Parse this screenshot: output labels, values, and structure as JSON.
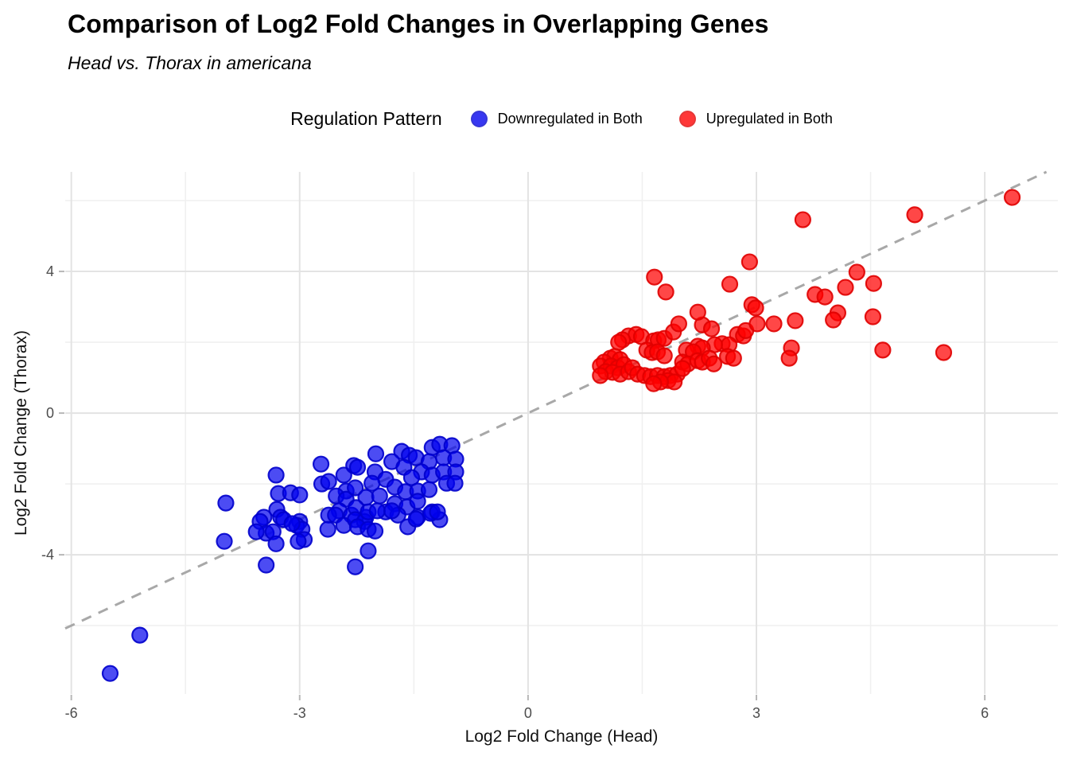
{
  "chart_data": {
    "type": "scatter",
    "title": "Comparison of Log2 Fold Changes in Overlapping Genes",
    "subtitle": "Head vs. Thorax in americana",
    "xlabel": "Log2 Fold Change (Head)",
    "ylabel": "Log2 Fold Change (Thorax)",
    "legend_title": "Regulation Pattern",
    "legend_position": "top-center",
    "grid": "on",
    "xlim": [
      -6.08,
      6.96
    ],
    "ylim": [
      -7.93,
      6.81
    ],
    "x_ticks": {
      "major": [
        {
          "value": -6,
          "label": "-6"
        },
        {
          "value": -3,
          "label": "-3"
        },
        {
          "value": 0,
          "label": "0"
        },
        {
          "value": 3,
          "label": "3"
        },
        {
          "value": 6,
          "label": "6"
        }
      ],
      "minor": [
        -4.5,
        -1.5,
        1.5,
        4.5
      ]
    },
    "y_ticks": {
      "major": [
        {
          "value": 4,
          "label": "4"
        },
        {
          "value": 0,
          "label": "0"
        },
        {
          "value": -4,
          "label": "-4"
        }
      ],
      "minor": [
        6,
        2,
        -2,
        -6
      ]
    },
    "reference_line": {
      "type": "identity",
      "slope": 1,
      "intercept": 0,
      "style": "dashed",
      "color": "#A8A8A8"
    },
    "colors": {
      "grid_major": "#e3e3e3",
      "grid_minor": "#f0f0f0",
      "tick_mark": "#b8b8b8",
      "tick_label": "#4d4d4d"
    },
    "series": [
      {
        "name": "Downregulated in Both",
        "fill": "#0000EE",
        "fill_opacity": 0.7,
        "stroke": "#0000CC",
        "stroke_opacity": 0.9,
        "points": [
          [
            -5.49,
            -7.35
          ],
          [
            -5.1,
            -6.27
          ],
          [
            -3.97,
            -2.54
          ],
          [
            -3.99,
            -3.62
          ],
          [
            -3.31,
            -1.75
          ],
          [
            -2.72,
            -1.44
          ],
          [
            -3.28,
            -2.27
          ],
          [
            -3.12,
            -2.25
          ],
          [
            -3.0,
            -2.31
          ],
          [
            -3.3,
            -2.72
          ],
          [
            -3.25,
            -2.94
          ],
          [
            -3.47,
            -2.94
          ],
          [
            -3.0,
            -3.06
          ],
          [
            -2.71,
            -2.0
          ],
          [
            -2.62,
            -1.93
          ],
          [
            -2.42,
            -1.75
          ],
          [
            -2.29,
            -1.48
          ],
          [
            -2.39,
            -2.2
          ],
          [
            -2.52,
            -2.34
          ],
          [
            -2.39,
            -2.43
          ],
          [
            -2.48,
            -2.76
          ],
          [
            -2.32,
            -2.88
          ],
          [
            -2.0,
            -1.15
          ],
          [
            -2.24,
            -1.53
          ],
          [
            -2.01,
            -1.66
          ],
          [
            -1.66,
            -1.08
          ],
          [
            -1.56,
            -1.19
          ],
          [
            -1.79,
            -1.37
          ],
          [
            -1.63,
            -1.53
          ],
          [
            -1.47,
            -1.26
          ],
          [
            -1.26,
            -0.97
          ],
          [
            -1.16,
            -0.88
          ],
          [
            -1.0,
            -0.92
          ],
          [
            -1.11,
            -1.26
          ],
          [
            -1.3,
            -1.37
          ],
          [
            -1.4,
            -1.66
          ],
          [
            -1.53,
            -1.82
          ],
          [
            -1.26,
            -1.75
          ],
          [
            -1.11,
            -1.66
          ],
          [
            -0.95,
            -1.3
          ],
          [
            -0.95,
            -1.66
          ],
          [
            -1.87,
            -1.87
          ],
          [
            -2.05,
            -1.98
          ],
          [
            -2.27,
            -2.11
          ],
          [
            -2.13,
            -2.38
          ],
          [
            -1.95,
            -2.34
          ],
          [
            -1.75,
            -2.09
          ],
          [
            -1.61,
            -2.22
          ],
          [
            -1.45,
            -2.2
          ],
          [
            -1.3,
            -2.16
          ],
          [
            -1.07,
            -1.98
          ],
          [
            -0.96,
            -1.98
          ],
          [
            -1.75,
            -2.56
          ],
          [
            -1.59,
            -2.65
          ],
          [
            -1.45,
            -2.49
          ],
          [
            -1.87,
            -2.79
          ],
          [
            -1.71,
            -2.88
          ],
          [
            -1.45,
            -2.94
          ],
          [
            -1.26,
            -2.79
          ],
          [
            -1.16,
            -3.01
          ],
          [
            -2.26,
            -2.67
          ],
          [
            -2.13,
            -2.94
          ],
          [
            -3.52,
            -3.06
          ],
          [
            -3.44,
            -3.39
          ],
          [
            -3.57,
            -3.35
          ],
          [
            -3.35,
            -3.35
          ],
          [
            -3.21,
            -3.01
          ],
          [
            -3.31,
            -3.69
          ],
          [
            -3.44,
            -4.29
          ],
          [
            -3.04,
            -3.17
          ],
          [
            -2.97,
            -3.28
          ],
          [
            -2.94,
            -3.57
          ],
          [
            -3.02,
            -3.62
          ],
          [
            -3.1,
            -3.12
          ],
          [
            -2.62,
            -2.88
          ],
          [
            -2.53,
            -2.88
          ],
          [
            -2.63,
            -3.28
          ],
          [
            -2.42,
            -3.17
          ],
          [
            -2.27,
            -3.01
          ],
          [
            -2.15,
            -3.06
          ],
          [
            -2.24,
            -3.21
          ],
          [
            -2.1,
            -3.28
          ],
          [
            -2.01,
            -3.33
          ],
          [
            -2.1,
            -2.79
          ],
          [
            -1.98,
            -2.76
          ],
          [
            -1.79,
            -2.76
          ],
          [
            -1.58,
            -3.21
          ],
          [
            -1.47,
            -2.99
          ],
          [
            -1.28,
            -2.83
          ],
          [
            -1.19,
            -2.79
          ],
          [
            -2.1,
            -3.89
          ],
          [
            -2.27,
            -4.34
          ]
        ]
      },
      {
        "name": "Upregulated in Both",
        "fill": "#FF0000",
        "fill_opacity": 0.72,
        "stroke": "#E00000",
        "stroke_opacity": 0.9,
        "points": [
          [
            1.32,
            2.18
          ],
          [
            1.42,
            2.22
          ],
          [
            1.49,
            2.16
          ],
          [
            1.24,
            2.07
          ],
          [
            1.19,
            2.0
          ],
          [
            1.65,
            2.04
          ],
          [
            1.71,
            2.07
          ],
          [
            1.79,
            2.11
          ],
          [
            1.91,
            2.29
          ],
          [
            1.98,
            2.52
          ],
          [
            2.29,
            2.49
          ],
          [
            2.41,
            2.38
          ],
          [
            2.75,
            2.22
          ],
          [
            2.83,
            2.18
          ],
          [
            2.55,
            1.96
          ],
          [
            2.64,
            1.93
          ],
          [
            2.45,
            1.93
          ],
          [
            2.23,
            1.89
          ],
          [
            2.29,
            1.84
          ],
          [
            2.08,
            1.78
          ],
          [
            2.17,
            1.73
          ],
          [
            1.56,
            1.78
          ],
          [
            1.63,
            1.71
          ],
          [
            1.7,
            1.73
          ],
          [
            1.79,
            1.62
          ],
          [
            1.08,
            1.55
          ],
          [
            1.14,
            1.6
          ],
          [
            1.21,
            1.51
          ],
          [
            1.0,
            1.44
          ],
          [
            0.95,
            1.33
          ],
          [
            1.09,
            1.33
          ],
          [
            1.18,
            1.28
          ],
          [
            1.26,
            1.37
          ],
          [
            1.02,
            1.17
          ],
          [
            1.11,
            1.15
          ],
          [
            1.21,
            1.1
          ],
          [
            0.95,
            1.06
          ],
          [
            1.32,
            1.17
          ],
          [
            1.37,
            1.28
          ],
          [
            1.44,
            1.1
          ],
          [
            1.53,
            1.06
          ],
          [
            1.61,
            1.03
          ],
          [
            1.7,
            1.06
          ],
          [
            1.79,
            1.03
          ],
          [
            1.87,
            1.06
          ],
          [
            1.96,
            1.1
          ],
          [
            1.84,
            0.92
          ],
          [
            1.92,
            0.88
          ],
          [
            1.74,
            0.88
          ],
          [
            1.65,
            0.83
          ],
          [
            2.03,
            1.44
          ],
          [
            2.1,
            1.39
          ],
          [
            2.03,
            1.26
          ],
          [
            2.23,
            1.48
          ],
          [
            2.29,
            1.44
          ],
          [
            2.38,
            1.55
          ],
          [
            2.44,
            1.39
          ],
          [
            2.62,
            1.6
          ],
          [
            2.7,
            1.55
          ],
          [
            2.86,
            2.33
          ],
          [
            3.01,
            2.52
          ],
          [
            1.66,
            3.84
          ],
          [
            1.81,
            3.42
          ],
          [
            2.91,
            4.27
          ],
          [
            2.65,
            3.64
          ],
          [
            2.23,
            2.85
          ],
          [
            2.94,
            3.06
          ],
          [
            3.61,
            5.46
          ],
          [
            4.32,
            3.98
          ],
          [
            4.54,
            3.66
          ],
          [
            4.17,
            3.55
          ],
          [
            3.77,
            3.35
          ],
          [
            3.9,
            3.28
          ],
          [
            2.99,
            2.97
          ],
          [
            4.07,
            2.83
          ],
          [
            4.01,
            2.63
          ],
          [
            4.53,
            2.72
          ],
          [
            3.23,
            2.52
          ],
          [
            3.51,
            2.61
          ],
          [
            3.46,
            1.84
          ],
          [
            3.43,
            1.55
          ],
          [
            4.66,
            1.78
          ],
          [
            5.08,
            5.6
          ],
          [
            6.36,
            6.09
          ],
          [
            5.46,
            1.71
          ]
        ]
      }
    ]
  }
}
